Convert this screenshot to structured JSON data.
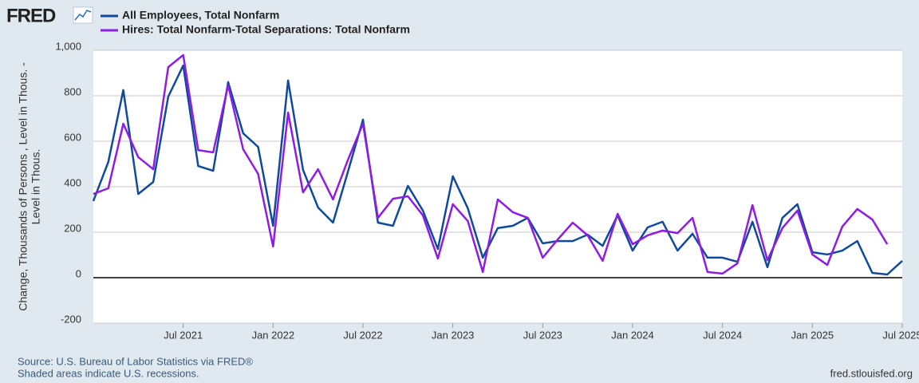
{
  "header": {
    "logo": "FRED"
  },
  "chart_data": {
    "type": "line",
    "x": [
      "2021-01",
      "2021-02",
      "2021-03",
      "2021-04",
      "2021-05",
      "2021-06",
      "2021-07",
      "2021-08",
      "2021-09",
      "2021-10",
      "2021-11",
      "2021-12",
      "2022-01",
      "2022-02",
      "2022-03",
      "2022-04",
      "2022-05",
      "2022-06",
      "2022-07",
      "2022-08",
      "2022-09",
      "2022-10",
      "2022-11",
      "2022-12",
      "2023-01",
      "2023-02",
      "2023-03",
      "2023-04",
      "2023-05",
      "2023-06",
      "2023-07",
      "2023-08",
      "2023-09",
      "2023-10",
      "2023-11",
      "2023-12",
      "2024-01",
      "2024-02",
      "2024-03",
      "2024-04",
      "2024-05",
      "2024-06",
      "2024-07",
      "2024-08",
      "2024-09",
      "2024-10",
      "2024-11",
      "2024-12",
      "2025-01",
      "2025-02",
      "2025-03",
      "2025-04",
      "2025-05",
      "2025-06",
      "2025-07"
    ],
    "series": [
      {
        "name": "All Employees, Total Nonfarm",
        "color": "#0f4a9c",
        "values": [
          337,
          509,
          825,
          368,
          421,
          796,
          933,
          491,
          470,
          860,
          635,
          575,
          228,
          867,
          474,
          309,
          242,
          467,
          695,
          242,
          228,
          404,
          295,
          126,
          446,
          305,
          88,
          218,
          228,
          263,
          151,
          161,
          161,
          189,
          140,
          274,
          119,
          221,
          246,
          119,
          193,
          88,
          88,
          70,
          246,
          46,
          263,
          323,
          112,
          102,
          119,
          161,
          21,
          14,
          74
        ]
      },
      {
        "name": "Hires: Total Nonfarm-Total Separations: Total Nonfarm",
        "color": "#8f1ce6",
        "values": [
          368,
          393,
          677,
          530,
          477,
          926,
          979,
          561,
          551,
          846,
          565,
          456,
          137,
          726,
          375,
          477,
          344,
          519,
          677,
          263,
          347,
          358,
          274,
          84,
          323,
          249,
          25,
          344,
          288,
          263,
          88,
          168,
          242,
          186,
          74,
          281,
          147,
          186,
          207,
          196,
          263,
          25,
          18,
          63,
          319,
          77,
          218,
          295,
          102,
          56,
          225,
          302,
          256,
          147,
          null
        ]
      }
    ],
    "ylabel": [
      "Change, Thousands of Persons , Level in Thous. -",
      "Level in Thous."
    ],
    "xlim": [
      "2021-01",
      "2025-07"
    ],
    "xticks": [
      {
        "value": "2021-07",
        "label": "Jul 2021"
      },
      {
        "value": "2022-01",
        "label": "Jan 2022"
      },
      {
        "value": "2022-07",
        "label": "Jul 2022"
      },
      {
        "value": "2023-01",
        "label": "Jan 2023"
      },
      {
        "value": "2023-07",
        "label": "Jul 2023"
      },
      {
        "value": "2024-01",
        "label": "Jan 2024"
      },
      {
        "value": "2024-07",
        "label": "Jul 2024"
      },
      {
        "value": "2025-01",
        "label": "Jan 2025"
      },
      {
        "value": "2025-07",
        "label": "Jul 2025"
      }
    ],
    "ylim": [
      -200,
      1000
    ],
    "yticks": [
      -200,
      0,
      200,
      400,
      600,
      800,
      {
        "value": 1000,
        "label": "1,000"
      }
    ],
    "grid": true
  },
  "footer": {
    "source": "Source: U.S. Bureau of Labor Statistics via FRED®",
    "note": "Shaded areas indicate U.S. recessions.",
    "url": "fred.stlouisfed.org"
  }
}
